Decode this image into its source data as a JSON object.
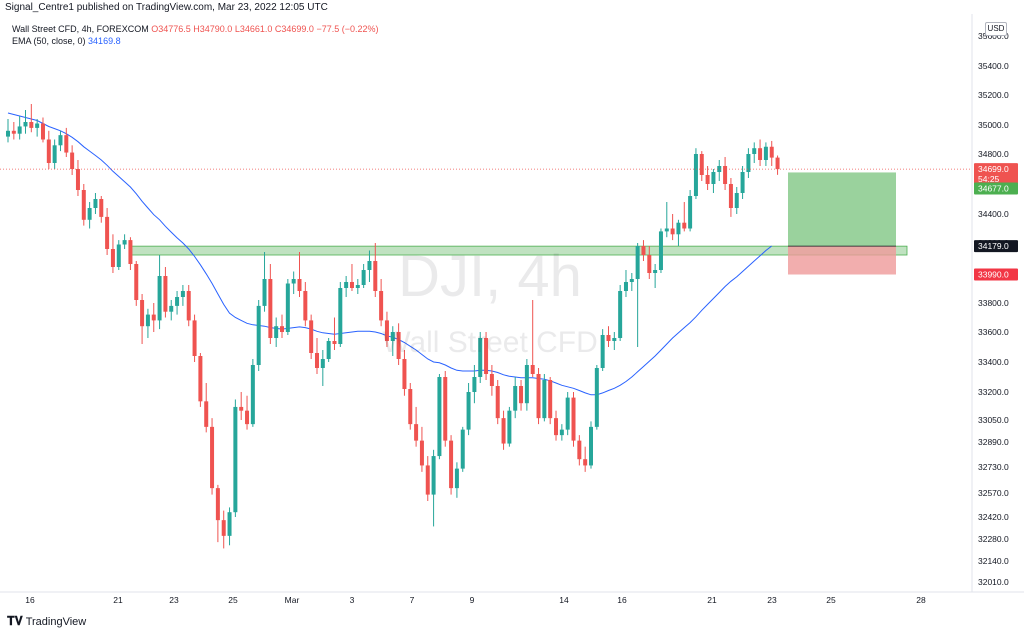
{
  "header": {
    "publisher": "Signal_Centre1 published on TradingView.com, Mar 23, 2022 12:05 UTC"
  },
  "legend": {
    "symbol": "Wall Street CFD, 4h, FOREXCOM",
    "open": "O34776.5",
    "high": "H34790.0",
    "low": "L34661.0",
    "close": "C34699.0",
    "change": "−77.5 (−0.22%)",
    "ema_label": "EMA (50, close, 0)",
    "ema_value": "34169.8"
  },
  "watermark": {
    "symbol": "DJI, 4h",
    "name": "Wall Street CFD"
  },
  "axis": {
    "currency": "USD",
    "price_ticks": [
      "35600.0",
      "35400.0",
      "35200.0",
      "35000.0",
      "34800.0",
      "34600.0",
      "34400.0",
      "34200.0",
      "34000.0",
      "33800.0",
      "33600.0",
      "33400.0",
      "33200.0",
      "33050.0",
      "32890.0",
      "32730.0",
      "32570.0",
      "32420.0",
      "32280.0",
      "32140.0",
      "32010.0"
    ],
    "time_ticks": [
      "16",
      "21",
      "23",
      "25",
      "Mar",
      "3",
      "7",
      "9",
      "14",
      "16",
      "21",
      "23",
      "25",
      "28"
    ]
  },
  "price_labels": {
    "last_price": "34699.0",
    "countdown": "54:25",
    "target": "34677.0",
    "entry": "34179.0",
    "stop": "33990.0"
  },
  "footer": {
    "brand": "TradingView"
  },
  "colors": {
    "bull": "#26a69a",
    "bear": "#ef5350",
    "ema": "#2962ff",
    "zone": "#a5d6a7",
    "profit": "#81c784",
    "loss": "#ef9a9a"
  },
  "chart_data": {
    "type": "candlestick",
    "title": "Wall Street CFD, 4h, FOREXCOM",
    "ylim": [
      32010,
      35600
    ],
    "y_scale": "tick-mapped",
    "grid": false,
    "candles": [
      {
        "o": 34920,
        "h": 35040,
        "l": 34880,
        "c": 34960
      },
      {
        "o": 34960,
        "h": 35020,
        "l": 34900,
        "c": 34940
      },
      {
        "o": 34940,
        "h": 35060,
        "l": 34900,
        "c": 34990
      },
      {
        "o": 34990,
        "h": 35100,
        "l": 34940,
        "c": 35020
      },
      {
        "o": 35020,
        "h": 35140,
        "l": 34950,
        "c": 34980
      },
      {
        "o": 34980,
        "h": 35040,
        "l": 34920,
        "c": 35010
      },
      {
        "o": 35010,
        "h": 35050,
        "l": 34880,
        "c": 34900
      },
      {
        "o": 34900,
        "h": 34960,
        "l": 34700,
        "c": 34740
      },
      {
        "o": 34740,
        "h": 34900,
        "l": 34700,
        "c": 34860
      },
      {
        "o": 34860,
        "h": 34960,
        "l": 34820,
        "c": 34930
      },
      {
        "o": 34930,
        "h": 34980,
        "l": 34780,
        "c": 34810
      },
      {
        "o": 34810,
        "h": 34860,
        "l": 34660,
        "c": 34700
      },
      {
        "o": 34700,
        "h": 34760,
        "l": 34520,
        "c": 34560
      },
      {
        "o": 34560,
        "h": 34600,
        "l": 34320,
        "c": 34360
      },
      {
        "o": 34360,
        "h": 34480,
        "l": 34300,
        "c": 34440
      },
      {
        "o": 34440,
        "h": 34540,
        "l": 34400,
        "c": 34500
      },
      {
        "o": 34500,
        "h": 34520,
        "l": 34340,
        "c": 34380
      },
      {
        "o": 34380,
        "h": 34440,
        "l": 34120,
        "c": 34160
      },
      {
        "o": 34160,
        "h": 34260,
        "l": 34000,
        "c": 34040
      },
      {
        "o": 34040,
        "h": 34220,
        "l": 34020,
        "c": 34190
      },
      {
        "o": 34190,
        "h": 34260,
        "l": 34160,
        "c": 34220
      },
      {
        "o": 34220,
        "h": 34240,
        "l": 34020,
        "c": 34060
      },
      {
        "o": 34060,
        "h": 34080,
        "l": 33780,
        "c": 33820
      },
      {
        "o": 33820,
        "h": 33860,
        "l": 33520,
        "c": 33640
      },
      {
        "o": 33640,
        "h": 33760,
        "l": 33560,
        "c": 33720
      },
      {
        "o": 33720,
        "h": 33800,
        "l": 33600,
        "c": 33680
      },
      {
        "o": 33680,
        "h": 34120,
        "l": 33620,
        "c": 33980
      },
      {
        "o": 33980,
        "h": 34040,
        "l": 33700,
        "c": 33740
      },
      {
        "o": 33740,
        "h": 33820,
        "l": 33680,
        "c": 33780
      },
      {
        "o": 33780,
        "h": 33880,
        "l": 33720,
        "c": 33840
      },
      {
        "o": 33840,
        "h": 33920,
        "l": 33780,
        "c": 33880
      },
      {
        "o": 33880,
        "h": 33920,
        "l": 33640,
        "c": 33680
      },
      {
        "o": 33680,
        "h": 33720,
        "l": 33400,
        "c": 33440
      },
      {
        "o": 33440,
        "h": 33460,
        "l": 33120,
        "c": 33150
      },
      {
        "o": 33150,
        "h": 33260,
        "l": 32960,
        "c": 33000
      },
      {
        "o": 33000,
        "h": 33060,
        "l": 32560,
        "c": 32600
      },
      {
        "o": 32600,
        "h": 32620,
        "l": 32260,
        "c": 32400
      },
      {
        "o": 32400,
        "h": 32460,
        "l": 32220,
        "c": 32300
      },
      {
        "o": 32300,
        "h": 32480,
        "l": 32240,
        "c": 32450
      },
      {
        "o": 32450,
        "h": 33160,
        "l": 32420,
        "c": 33120
      },
      {
        "o": 33120,
        "h": 33200,
        "l": 33050,
        "c": 33100
      },
      {
        "o": 33100,
        "h": 33180,
        "l": 32980,
        "c": 33020
      },
      {
        "o": 33020,
        "h": 33420,
        "l": 33000,
        "c": 33380
      },
      {
        "o": 33380,
        "h": 33820,
        "l": 33340,
        "c": 33780
      },
      {
        "o": 33780,
        "h": 34140,
        "l": 33740,
        "c": 33960
      },
      {
        "o": 33960,
        "h": 34060,
        "l": 33520,
        "c": 33560
      },
      {
        "o": 33560,
        "h": 33700,
        "l": 33500,
        "c": 33640
      },
      {
        "o": 33640,
        "h": 33720,
        "l": 33560,
        "c": 33600
      },
      {
        "o": 33600,
        "h": 33960,
        "l": 33580,
        "c": 33930
      },
      {
        "o": 33930,
        "h": 34010,
        "l": 33860,
        "c": 33960
      },
      {
        "o": 33960,
        "h": 34140,
        "l": 33840,
        "c": 33880
      },
      {
        "o": 33880,
        "h": 33940,
        "l": 33640,
        "c": 33680
      },
      {
        "o": 33680,
        "h": 33720,
        "l": 33420,
        "c": 33460
      },
      {
        "o": 33460,
        "h": 33560,
        "l": 33320,
        "c": 33360
      },
      {
        "o": 33360,
        "h": 33480,
        "l": 33240,
        "c": 33420
      },
      {
        "o": 33420,
        "h": 33560,
        "l": 33400,
        "c": 33540
      },
      {
        "o": 33540,
        "h": 33700,
        "l": 33480,
        "c": 33520
      },
      {
        "o": 33520,
        "h": 33940,
        "l": 33500,
        "c": 33900
      },
      {
        "o": 33900,
        "h": 33980,
        "l": 33840,
        "c": 33940
      },
      {
        "o": 33940,
        "h": 34060,
        "l": 33880,
        "c": 33900
      },
      {
        "o": 33900,
        "h": 33960,
        "l": 33860,
        "c": 33920
      },
      {
        "o": 33920,
        "h": 34060,
        "l": 33900,
        "c": 34020
      },
      {
        "o": 34020,
        "h": 34150,
        "l": 33940,
        "c": 34080
      },
      {
        "o": 34080,
        "h": 34200,
        "l": 33840,
        "c": 33880
      },
      {
        "o": 33880,
        "h": 33960,
        "l": 33640,
        "c": 33680
      },
      {
        "o": 33680,
        "h": 33740,
        "l": 33500,
        "c": 33540
      },
      {
        "o": 33540,
        "h": 33640,
        "l": 33440,
        "c": 33600
      },
      {
        "o": 33600,
        "h": 33660,
        "l": 33380,
        "c": 33420
      },
      {
        "o": 33420,
        "h": 33480,
        "l": 33180,
        "c": 33220
      },
      {
        "o": 33220,
        "h": 33260,
        "l": 32980,
        "c": 33020
      },
      {
        "o": 33020,
        "h": 33120,
        "l": 32860,
        "c": 32900
      },
      {
        "o": 32900,
        "h": 33000,
        "l": 32700,
        "c": 32740
      },
      {
        "o": 32740,
        "h": 32800,
        "l": 32520,
        "c": 32560
      },
      {
        "o": 32560,
        "h": 32840,
        "l": 32360,
        "c": 32800
      },
      {
        "o": 32800,
        "h": 33320,
        "l": 32780,
        "c": 33300
      },
      {
        "o": 33300,
        "h": 33340,
        "l": 32860,
        "c": 32900
      },
      {
        "o": 32900,
        "h": 32940,
        "l": 32560,
        "c": 32600
      },
      {
        "o": 32600,
        "h": 32760,
        "l": 32540,
        "c": 32720
      },
      {
        "o": 32720,
        "h": 33000,
        "l": 32700,
        "c": 32980
      },
      {
        "o": 32980,
        "h": 33260,
        "l": 32940,
        "c": 33200
      },
      {
        "o": 33200,
        "h": 33380,
        "l": 33140,
        "c": 33300
      },
      {
        "o": 33300,
        "h": 33600,
        "l": 33260,
        "c": 33560
      },
      {
        "o": 33560,
        "h": 33600,
        "l": 33280,
        "c": 33320
      },
      {
        "o": 33320,
        "h": 33380,
        "l": 33180,
        "c": 33240
      },
      {
        "o": 33240,
        "h": 33280,
        "l": 33020,
        "c": 33060
      },
      {
        "o": 33060,
        "h": 33100,
        "l": 32840,
        "c": 32880
      },
      {
        "o": 32880,
        "h": 33120,
        "l": 32860,
        "c": 33100
      },
      {
        "o": 33100,
        "h": 33300,
        "l": 33060,
        "c": 33240
      },
      {
        "o": 33240,
        "h": 33280,
        "l": 33100,
        "c": 33140
      },
      {
        "o": 33140,
        "h": 33420,
        "l": 33100,
        "c": 33380
      },
      {
        "o": 33380,
        "h": 33820,
        "l": 33300,
        "c": 33320
      },
      {
        "o": 33320,
        "h": 33360,
        "l": 33020,
        "c": 33060
      },
      {
        "o": 33060,
        "h": 33320,
        "l": 33040,
        "c": 33280
      },
      {
        "o": 33280,
        "h": 33300,
        "l": 33020,
        "c": 33060
      },
      {
        "o": 33060,
        "h": 33100,
        "l": 32900,
        "c": 32940
      },
      {
        "o": 32940,
        "h": 33020,
        "l": 32900,
        "c": 32980
      },
      {
        "o": 32980,
        "h": 33200,
        "l": 32940,
        "c": 33170
      },
      {
        "o": 33170,
        "h": 33200,
        "l": 32860,
        "c": 32900
      },
      {
        "o": 32900,
        "h": 32940,
        "l": 32740,
        "c": 32780
      },
      {
        "o": 32780,
        "h": 32860,
        "l": 32700,
        "c": 32740
      },
      {
        "o": 32740,
        "h": 33040,
        "l": 32720,
        "c": 33000
      },
      {
        "o": 33000,
        "h": 33380,
        "l": 32980,
        "c": 33360
      },
      {
        "o": 33360,
        "h": 33620,
        "l": 33340,
        "c": 33580
      },
      {
        "o": 33580,
        "h": 33640,
        "l": 33500,
        "c": 33540
      },
      {
        "o": 33540,
        "h": 33600,
        "l": 33480,
        "c": 33560
      },
      {
        "o": 33560,
        "h": 33920,
        "l": 33540,
        "c": 33880
      },
      {
        "o": 33880,
        "h": 34020,
        "l": 33840,
        "c": 33940
      },
      {
        "o": 33940,
        "h": 34000,
        "l": 33880,
        "c": 33960
      },
      {
        "o": 33960,
        "h": 34200,
        "l": 33500,
        "c": 34180
      },
      {
        "o": 34180,
        "h": 34220,
        "l": 34080,
        "c": 34120
      },
      {
        "o": 34120,
        "h": 34180,
        "l": 33960,
        "c": 34000
      },
      {
        "o": 34000,
        "h": 34060,
        "l": 33900,
        "c": 34020
      },
      {
        "o": 34020,
        "h": 34300,
        "l": 34000,
        "c": 34280
      },
      {
        "o": 34280,
        "h": 34480,
        "l": 34240,
        "c": 34300
      },
      {
        "o": 34300,
        "h": 34400,
        "l": 34220,
        "c": 34260
      },
      {
        "o": 34260,
        "h": 34360,
        "l": 34180,
        "c": 34340
      },
      {
        "o": 34340,
        "h": 34480,
        "l": 34280,
        "c": 34300
      },
      {
        "o": 34300,
        "h": 34560,
        "l": 34280,
        "c": 34520
      },
      {
        "o": 34520,
        "h": 34840,
        "l": 34500,
        "c": 34800
      },
      {
        "o": 34800,
        "h": 34820,
        "l": 34620,
        "c": 34660
      },
      {
        "o": 34660,
        "h": 34720,
        "l": 34560,
        "c": 34600
      },
      {
        "o": 34600,
        "h": 34700,
        "l": 34540,
        "c": 34680
      },
      {
        "o": 34680,
        "h": 34760,
        "l": 34620,
        "c": 34720
      },
      {
        "o": 34720,
        "h": 34780,
        "l": 34560,
        "c": 34600
      },
      {
        "o": 34600,
        "h": 34640,
        "l": 34380,
        "c": 34440
      },
      {
        "o": 34440,
        "h": 34580,
        "l": 34400,
        "c": 34540
      },
      {
        "o": 34540,
        "h": 34720,
        "l": 34500,
        "c": 34680
      },
      {
        "o": 34680,
        "h": 34840,
        "l": 34640,
        "c": 34800
      },
      {
        "o": 34800,
        "h": 34880,
        "l": 34740,
        "c": 34840
      },
      {
        "o": 34840,
        "h": 34900,
        "l": 34720,
        "c": 34760
      },
      {
        "o": 34760,
        "h": 34880,
        "l": 34720,
        "c": 34850
      },
      {
        "o": 34850,
        "h": 34890,
        "l": 34720,
        "c": 34776
      },
      {
        "o": 34776,
        "h": 34790,
        "l": 34661,
        "c": 34699
      }
    ],
    "ema": [
      35080,
      35070,
      35060,
      35050,
      35040,
      35030,
      35010,
      34990,
      34975,
      34960,
      34940,
      34915,
      34885,
      34850,
      34820,
      34790,
      34760,
      34725,
      34685,
      34650,
      34615,
      34580,
      34535,
      34485,
      34440,
      34395,
      34360,
      34315,
      34275,
      34235,
      34200,
      34160,
      34110,
      34055,
      33995,
      33930,
      33860,
      33790,
      33730,
      33700,
      33680,
      33660,
      33650,
      33645,
      33640,
      33630,
      33625,
      33620,
      33625,
      33630,
      33635,
      33630,
      33620,
      33605,
      33595,
      33590,
      33585,
      33590,
      33595,
      33600,
      33605,
      33605,
      33605,
      33600,
      33590,
      33575,
      33565,
      33550,
      33530,
      33505,
      33480,
      33450,
      33420,
      33400,
      33395,
      33380,
      33360,
      33345,
      33340,
      33340,
      33340,
      33345,
      33345,
      33340,
      33330,
      33315,
      33305,
      33300,
      33295,
      33295,
      33295,
      33290,
      33285,
      33275,
      33260,
      33245,
      33235,
      33225,
      33210,
      33195,
      33185,
      33185,
      33195,
      33210,
      33225,
      33245,
      33270,
      33300,
      33335,
      33370,
      33405,
      33440,
      33480,
      33520,
      33560,
      33595,
      33630,
      33665,
      33705,
      33750,
      33790,
      33830,
      33870,
      33910,
      33945,
      33975,
      34010,
      34045,
      34080,
      34115,
      34150,
      34180
    ],
    "support_zone": {
      "from": 34120,
      "to": 34179
    },
    "position": {
      "target": 34677.0,
      "entry": 34179.0,
      "stop": 33990.0
    },
    "last_price": 34699.0
  }
}
